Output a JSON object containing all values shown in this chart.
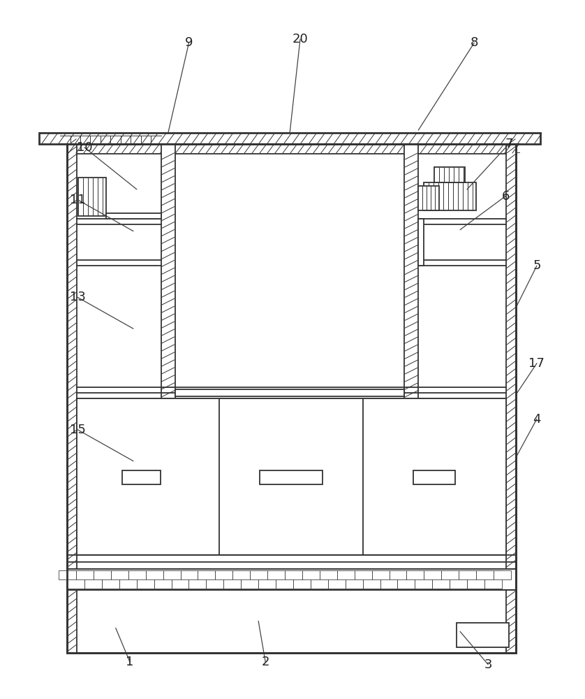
{
  "fig_width": 8.38,
  "fig_height": 10.0,
  "dpi": 100,
  "line_color": "#333333",
  "bg_color": "#ffffff"
}
